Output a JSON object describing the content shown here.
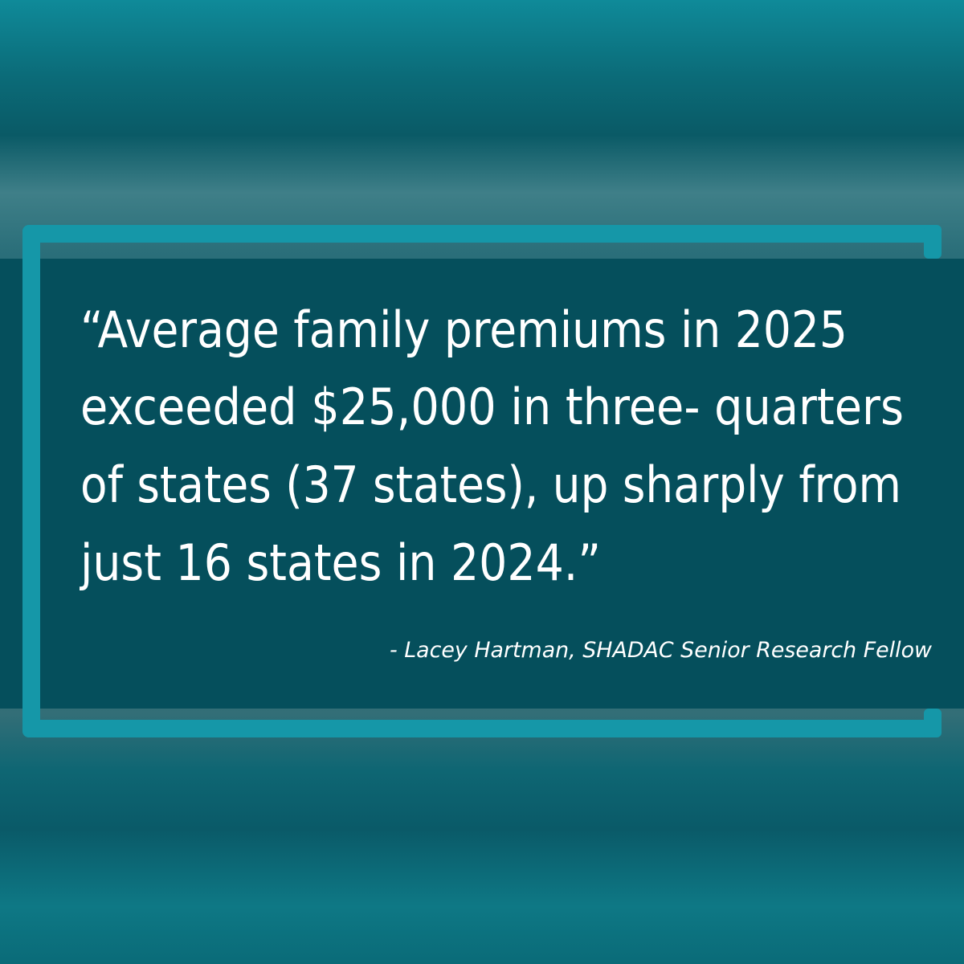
{
  "quote": {
    "lines": [
      "“Average family premiums in 2025",
      "exceeded $25,000 in three- quarters",
      "of states (37 states), up sharply from",
      "just 16 states in 2024.”"
    ],
    "attribution": "- Lacey Hartman, SHADAC Senior Research Fellow"
  }
}
